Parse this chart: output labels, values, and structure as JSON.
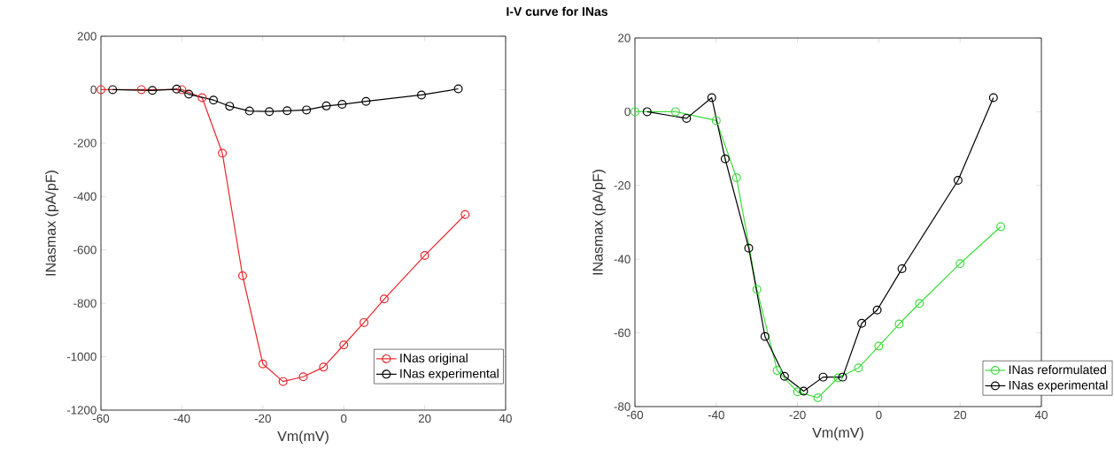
{
  "chart_data": [
    {
      "type": "line",
      "title": "I-V curve for INas",
      "xlabel": "Vm(mV)",
      "ylabel": "INasmax (pA/pF)",
      "xlim": [
        -60,
        40
      ],
      "ylim": [
        -1200,
        200
      ],
      "xticks": [
        -60,
        -40,
        -20,
        0,
        20,
        40
      ],
      "yticks": [
        -1200,
        -1000,
        -800,
        -600,
        -400,
        -200,
        0,
        200
      ],
      "marker": "circle",
      "legend": "bottom right",
      "series": [
        {
          "name": "INas original",
          "color": "#e8262a",
          "x": [
            -60,
            -50,
            -40,
            -35,
            -30,
            -25,
            -20,
            -15,
            -10,
            -5,
            0,
            5,
            10,
            20,
            30
          ],
          "values": [
            0,
            0,
            0,
            -30,
            -238,
            -697,
            -1027,
            -1093,
            -1075,
            -1039,
            -956,
            -872,
            -784,
            -621,
            -468
          ]
        },
        {
          "name": "INas experimental",
          "color": "#000000",
          "x": [
            -57.1,
            -47.3,
            -41.3,
            -38.3,
            -32.2,
            -28.2,
            -23.3,
            -18.4,
            -14.0,
            -9.2,
            -4.3,
            -0.4,
            5.5,
            19.2,
            28.3
          ],
          "values": [
            0,
            -3,
            2,
            -17,
            -39,
            -62,
            -80,
            -82,
            -79,
            -76,
            -61,
            -55,
            -44,
            -20,
            3
          ]
        }
      ]
    },
    {
      "type": "line",
      "xlabel": "Vm(mV)",
      "ylabel": "INasmax (pA/pF)",
      "xlim": [
        -60,
        40
      ],
      "ylim": [
        -80,
        20
      ],
      "xticks": [
        -60,
        -40,
        -20,
        0,
        20,
        40
      ],
      "yticks": [
        -80,
        -60,
        -40,
        -20,
        0,
        20
      ],
      "marker": "circle",
      "legend": "bottom right",
      "series": [
        {
          "name": "INas reformulated",
          "color": "#3ddc3d",
          "x": [
            -60,
            -50,
            -40,
            -35,
            -30,
            -25,
            -20,
            -15,
            -10,
            -5,
            0,
            5,
            10,
            20,
            30
          ],
          "values": [
            0,
            0,
            -2.4,
            -17.9,
            -48.2,
            -70.2,
            -76,
            -77.6,
            -72.2,
            -69.5,
            -63.6,
            -57.6,
            -52,
            -41.2,
            -31.2
          ]
        },
        {
          "name": "INas experimental",
          "color": "#000000",
          "x": [
            -57.0,
            -47.3,
            -41.1,
            -37.8,
            -32.0,
            -28.0,
            -23.2,
            -18.5,
            -13.7,
            -8.9,
            -4.2,
            -0.4,
            5.7,
            19.5,
            28.2
          ],
          "values": [
            0,
            -1.8,
            3.8,
            -12.8,
            -37,
            -61,
            -71.8,
            -75.8,
            -72,
            -72,
            -57.4,
            -53.8,
            -42.6,
            -18.6,
            3.8
          ]
        }
      ]
    }
  ]
}
